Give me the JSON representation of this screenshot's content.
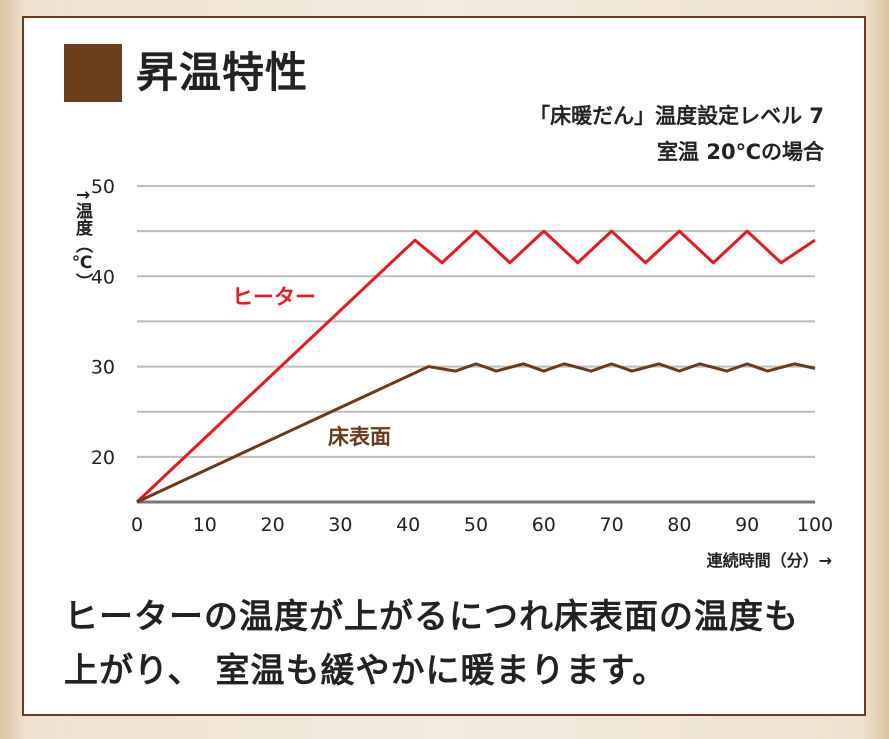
{
  "header": {
    "title": "昇温特性",
    "subtitle_line1": "「床暖だん」温度設定レベル 7",
    "subtitle_line2": "室温 20℃の場合"
  },
  "caption": {
    "line1": "ヒーターの温度が上がるにつれ床表面の温度も",
    "line2": "上がり、 室温も緩やかに暖まります。"
  },
  "chart_data": {
    "type": "line",
    "ylabel": "↑温度（℃）",
    "xlabel": "連続時間（分）→",
    "xlim": [
      0,
      100
    ],
    "ylim": [
      15,
      50
    ],
    "x_ticks": [
      0,
      10,
      20,
      30,
      40,
      50,
      60,
      70,
      80,
      90,
      100
    ],
    "y_ticks": [
      20,
      30,
      40,
      50
    ],
    "grid": true,
    "series": [
      {
        "name": "ヒーター",
        "color": "#e8191c",
        "x": [
          0,
          41,
          45,
          50,
          55,
          60,
          65,
          70,
          75,
          80,
          85,
          90,
          95,
          100
        ],
        "y": [
          15,
          44,
          41.5,
          45,
          41.5,
          45,
          41.5,
          45,
          41.5,
          45,
          41.5,
          45,
          41.5,
          44
        ]
      },
      {
        "name": "床表面",
        "color": "#6b3a1a",
        "x": [
          0,
          43,
          47,
          50,
          53,
          57,
          60,
          63,
          67,
          70,
          73,
          77,
          80,
          83,
          87,
          90,
          93,
          97,
          100
        ],
        "y": [
          15,
          30,
          29.5,
          30.3,
          29.5,
          30.3,
          29.5,
          30.3,
          29.5,
          30.3,
          29.5,
          30.3,
          29.5,
          30.3,
          29.5,
          30.3,
          29.5,
          30.3,
          29.8
        ]
      }
    ]
  }
}
